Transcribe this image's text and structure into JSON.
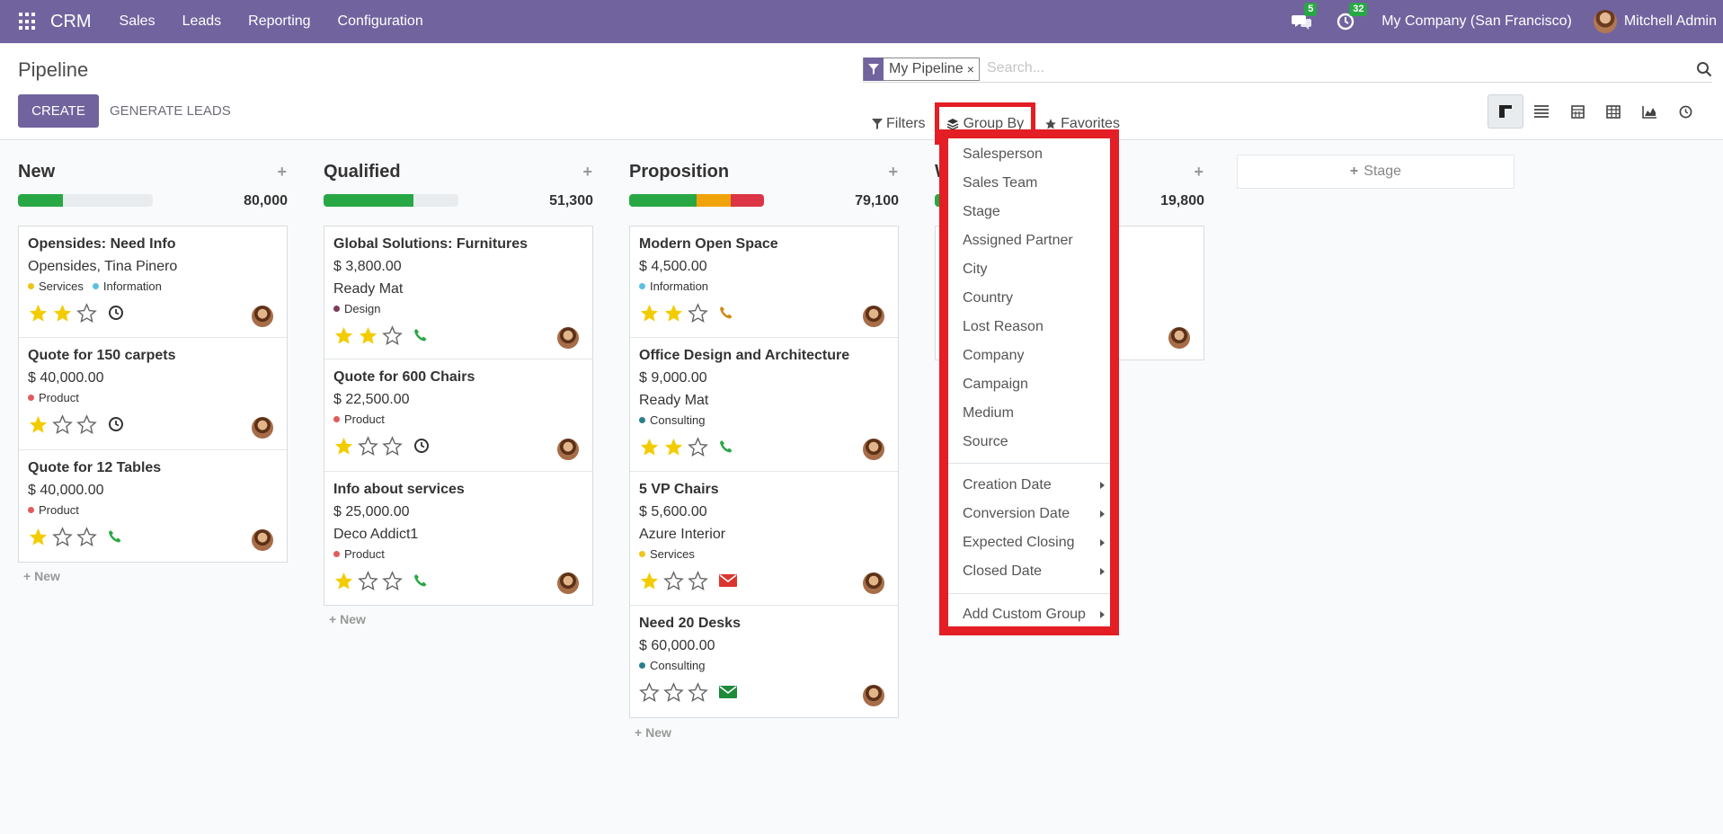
{
  "navbar": {
    "app_name": "CRM",
    "menus": [
      "Sales",
      "Leads",
      "Reporting",
      "Configuration"
    ],
    "chat_count": "5",
    "activity_count": "32",
    "company": "My Company (San Francisco)",
    "user": "Mitchell Admin"
  },
  "control": {
    "title": "Pipeline",
    "create_label": "CREATE",
    "generate_label": "GENERATE LEADS",
    "facet_label": "My Pipeline",
    "facet_close": "×",
    "search_placeholder": "Search...",
    "filters_label": "Filters",
    "groupby_label": "Group By",
    "favorites_label": "Favorites"
  },
  "columns": [
    {
      "title": "New",
      "total": "80,000",
      "progress": [
        {
          "color": "#28a745",
          "pct": 33
        }
      ],
      "cards": [
        {
          "title": "Opensides: Need Info",
          "lines": [
            "Opensides, Tina Pinero"
          ],
          "tags": [
            {
              "label": "Services",
              "color": "#f0c419"
            },
            {
              "label": "Information",
              "color": "#5bc0de"
            }
          ],
          "stars": 2,
          "activity": "clock"
        },
        {
          "title": "Quote for 150 carpets",
          "lines": [
            "$ 40,000.00"
          ],
          "tags": [
            {
              "label": "Product",
              "color": "#e15b5b"
            }
          ],
          "stars": 1,
          "activity": "clock"
        },
        {
          "title": "Quote for 12 Tables",
          "lines": [
            "$ 40,000.00"
          ],
          "tags": [
            {
              "label": "Product",
              "color": "#e15b5b"
            }
          ],
          "stars": 1,
          "activity": "phone-green"
        }
      ],
      "new_label": "New"
    },
    {
      "title": "Qualified",
      "total": "51,300",
      "progress": [
        {
          "color": "#28a745",
          "pct": 67
        }
      ],
      "cards": [
        {
          "title": "Global Solutions: Furnitures",
          "lines": [
            "$ 3,800.00",
            "Ready Mat"
          ],
          "tags": [
            {
              "label": "Design",
              "color": "#7d3c5c"
            }
          ],
          "stars": 2,
          "activity": "phone-green"
        },
        {
          "title": "Quote for 600 Chairs",
          "lines": [
            "$ 22,500.00"
          ],
          "tags": [
            {
              "label": "Product",
              "color": "#e15b5b"
            }
          ],
          "stars": 1,
          "activity": "clock"
        },
        {
          "title": "Info about services",
          "lines": [
            "$ 25,000.00",
            "Deco Addict1"
          ],
          "tags": [
            {
              "label": "Product",
              "color": "#e15b5b"
            }
          ],
          "stars": 1,
          "activity": "phone-green"
        }
      ],
      "new_label": "New"
    },
    {
      "title": "Proposition",
      "total": "79,100",
      "progress": [
        {
          "color": "#28a745",
          "pct": 50
        },
        {
          "color": "#f0a30a",
          "pct": 25
        },
        {
          "color": "#dc3545",
          "pct": 25
        }
      ],
      "cards": [
        {
          "title": "Modern Open Space",
          "lines": [
            "$ 4,500.00"
          ],
          "tags": [
            {
              "label": "Information",
              "color": "#5bc0de"
            }
          ],
          "stars": 2,
          "activity": "phone-orange"
        },
        {
          "title": "Office Design and Architecture",
          "lines": [
            "$ 9,000.00",
            "Ready Mat"
          ],
          "tags": [
            {
              "label": "Consulting",
              "color": "#2a7f8a"
            }
          ],
          "stars": 2,
          "activity": "phone-green"
        },
        {
          "title": "5 VP Chairs",
          "lines": [
            "$ 5,600.00",
            "Azure Interior"
          ],
          "tags": [
            {
              "label": "Services",
              "color": "#f0c419"
            }
          ],
          "stars": 1,
          "activity": "mail-red"
        },
        {
          "title": "Need 20 Desks",
          "lines": [
            "$ 60,000.00"
          ],
          "tags": [
            {
              "label": "Consulting",
              "color": "#2a7f8a"
            }
          ],
          "stars": 0,
          "activity": "mail-green"
        }
      ],
      "new_label": "New"
    },
    {
      "title": "W",
      "total": "19,800",
      "progress": [
        {
          "color": "#28a745",
          "pct": 100
        }
      ]
    }
  ],
  "add_stage_label": "Stage",
  "groupby_menu": {
    "fields": [
      "Salesperson",
      "Sales Team",
      "Stage",
      "Assigned Partner",
      "City",
      "Country",
      "Lost Reason",
      "Company",
      "Campaign",
      "Medium",
      "Source"
    ],
    "dates": [
      "Creation Date",
      "Conversion Date",
      "Expected Closing",
      "Closed Date"
    ],
    "custom": "Add Custom Group"
  }
}
